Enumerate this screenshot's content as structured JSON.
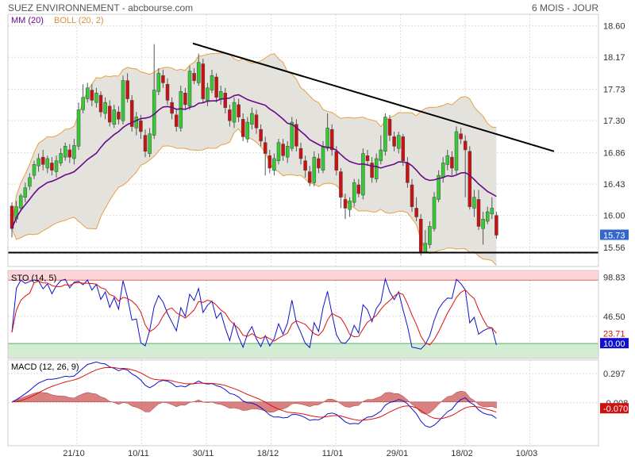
{
  "header": {
    "title": "SUEZ ENVIRONNEMENT - abcbourse.com",
    "period": "6 MOIS - JOUR"
  },
  "legend": {
    "mm": "MM (20)",
    "boll": "BOLL (20, 2)",
    "sto": "STO (14, 5)",
    "macd": "MACD (12, 26, 9)"
  },
  "colors": {
    "up": "#33cc33",
    "down": "#cc1111",
    "mm": "#6a0a8a",
    "boll_line": "#e8a040",
    "boll_fill": "#e4e2dc",
    "stoch_fast": "#1111cc",
    "stoch_slow": "#dd1111",
    "macd": "#1111cc",
    "signal": "#dd1111",
    "hist": "#cc5555",
    "overbought": "#fdd4d8",
    "oversold": "#d4ecd4",
    "last_price": "#3366cc"
  },
  "x_axis_labels": [
    "21/10",
    "10/11",
    "30/11",
    "18/12",
    "11/01",
    "29/01",
    "18/02",
    "10/03"
  ],
  "chart_data": [
    {
      "type": "candlestick",
      "name": "price",
      "yticks": [
        15.56,
        16.0,
        16.43,
        16.86,
        17.3,
        17.73,
        18.17,
        18.6
      ],
      "ylim": [
        15.3,
        18.76
      ],
      "last_price": 15.73,
      "horizontal_support": 15.49,
      "trendline": {
        "from": {
          "date": "08/11",
          "value": 18.36
        },
        "to": {
          "date": "15/03",
          "value": 16.88
        }
      },
      "candles": [
        [
          16.13,
          15.82,
          16.18,
          15.7
        ],
        [
          15.95,
          16.12,
          16.2,
          15.9
        ],
        [
          16.1,
          16.27,
          16.3,
          16.05
        ],
        [
          16.25,
          16.38,
          16.45,
          16.18
        ],
        [
          16.4,
          16.52,
          16.58,
          16.35
        ],
        [
          16.55,
          16.7,
          16.75,
          16.5
        ],
        [
          16.68,
          16.78,
          16.85,
          16.6
        ],
        [
          16.8,
          16.7,
          16.9,
          16.62
        ],
        [
          16.65,
          16.78,
          16.82,
          16.58
        ],
        [
          16.72,
          16.62,
          16.8,
          16.55
        ],
        [
          16.6,
          16.75,
          16.82,
          16.52
        ],
        [
          16.72,
          16.85,
          16.92,
          16.68
        ],
        [
          16.8,
          16.95,
          17.0,
          16.75
        ],
        [
          16.9,
          16.8,
          16.98,
          16.72
        ],
        [
          16.78,
          16.96,
          17.05,
          16.7
        ],
        [
          16.95,
          17.45,
          17.55,
          16.9
        ],
        [
          17.45,
          17.62,
          17.8,
          17.4
        ],
        [
          17.6,
          17.75,
          17.82,
          17.55
        ],
        [
          17.72,
          17.58,
          17.8,
          17.5
        ],
        [
          17.55,
          17.68,
          17.75,
          17.48
        ],
        [
          17.65,
          17.42,
          17.7,
          17.35
        ],
        [
          17.4,
          17.55,
          17.62,
          17.32
        ],
        [
          17.5,
          17.28,
          17.58,
          17.22
        ],
        [
          17.25,
          17.45,
          17.52,
          17.2
        ],
        [
          17.42,
          17.32,
          17.5,
          17.25
        ],
        [
          17.3,
          17.85,
          17.92,
          17.25
        ],
        [
          17.85,
          17.6,
          17.95,
          17.55
        ],
        [
          17.58,
          17.22,
          17.65,
          17.15
        ],
        [
          17.2,
          17.35,
          17.42,
          17.1
        ],
        [
          17.3,
          17.15,
          17.38,
          17.05
        ],
        [
          17.1,
          16.88,
          17.18,
          16.8
        ],
        [
          16.85,
          17.12,
          17.2,
          16.8
        ],
        [
          17.1,
          17.72,
          18.35,
          17.05
        ],
        [
          17.7,
          17.95,
          18.02,
          17.65
        ],
        [
          17.92,
          17.82,
          18.0,
          17.75
        ],
        [
          17.8,
          17.58,
          17.88,
          17.52
        ],
        [
          17.55,
          17.4,
          17.62,
          17.32
        ],
        [
          17.38,
          17.22,
          17.45,
          17.15
        ],
        [
          17.2,
          17.7,
          17.78,
          17.15
        ],
        [
          17.68,
          17.52,
          17.75,
          17.45
        ],
        [
          17.5,
          17.98,
          18.05,
          17.45
        ],
        [
          17.95,
          17.85,
          18.02,
          17.8
        ],
        [
          17.82,
          18.1,
          18.22,
          17.78
        ],
        [
          18.08,
          17.6,
          18.15,
          17.55
        ],
        [
          17.58,
          17.75,
          17.82,
          17.5
        ],
        [
          17.72,
          17.92,
          18.0,
          17.68
        ],
        [
          17.9,
          17.62,
          17.95,
          17.55
        ],
        [
          17.6,
          17.7,
          17.78,
          17.52
        ],
        [
          17.68,
          17.48,
          17.75,
          17.4
        ],
        [
          17.45,
          17.3,
          17.52,
          17.22
        ],
        [
          17.28,
          17.55,
          17.62,
          17.2
        ],
        [
          17.52,
          17.35,
          17.6,
          17.28
        ],
        [
          17.32,
          17.08,
          17.4,
          17.02
        ],
        [
          17.05,
          17.28,
          17.35,
          17.0
        ],
        [
          17.25,
          17.4,
          17.48,
          17.18
        ],
        [
          17.38,
          17.2,
          17.45,
          17.12
        ],
        [
          17.18,
          17.02,
          17.25,
          16.95
        ],
        [
          17.0,
          16.85,
          17.08,
          16.55
        ],
        [
          16.82,
          16.65,
          16.9,
          16.58
        ],
        [
          16.62,
          16.78,
          16.85,
          16.55
        ],
        [
          16.75,
          17.0,
          17.05,
          16.7
        ],
        [
          16.98,
          16.82,
          17.05,
          16.75
        ],
        [
          16.8,
          16.95,
          17.02,
          16.72
        ],
        [
          16.92,
          17.28,
          17.35,
          16.88
        ],
        [
          17.25,
          16.95,
          17.32,
          16.88
        ],
        [
          16.92,
          16.78,
          17.0,
          16.7
        ],
        [
          16.75,
          16.62,
          16.82,
          16.52
        ],
        [
          16.6,
          16.45,
          16.68,
          16.4
        ],
        [
          16.45,
          16.8,
          16.88,
          16.4
        ],
        [
          16.78,
          16.65,
          16.85,
          16.58
        ],
        [
          16.62,
          16.95,
          17.02,
          16.58
        ],
        [
          16.92,
          17.2,
          17.4,
          16.88
        ],
        [
          17.18,
          16.9,
          17.25,
          16.82
        ],
        [
          16.88,
          16.62,
          16.95,
          16.55
        ],
        [
          16.6,
          16.25,
          16.65,
          16.1
        ],
        [
          16.22,
          16.1,
          16.3,
          15.95
        ],
        [
          16.08,
          16.2,
          16.25,
          15.98
        ],
        [
          16.18,
          16.45,
          16.5,
          16.12
        ],
        [
          16.42,
          16.3,
          16.5,
          16.25
        ],
        [
          16.28,
          16.85,
          16.92,
          16.22
        ],
        [
          16.82,
          16.75,
          16.9,
          16.68
        ],
        [
          16.72,
          16.52,
          16.8,
          16.45
        ],
        [
          16.5,
          16.78,
          16.85,
          16.45
        ],
        [
          16.75,
          16.9,
          17.1,
          16.7
        ],
        [
          16.88,
          17.35,
          17.4,
          16.82
        ],
        [
          17.32,
          17.1,
          17.38,
          17.02
        ],
        [
          17.08,
          16.95,
          17.15,
          16.88
        ],
        [
          16.92,
          17.1,
          17.15,
          16.85
        ],
        [
          17.08,
          16.75,
          17.12,
          16.68
        ],
        [
          16.72,
          16.45,
          16.8,
          16.38
        ],
        [
          16.42,
          16.12,
          16.5,
          16.05
        ],
        [
          16.1,
          15.98,
          16.25,
          15.92
        ],
        [
          15.95,
          15.5,
          16.02,
          15.45
        ],
        [
          15.5,
          15.62,
          15.8,
          15.48
        ],
        [
          15.6,
          15.85,
          15.92,
          15.55
        ],
        [
          15.82,
          16.25,
          16.32,
          15.78
        ],
        [
          16.22,
          16.55,
          16.62,
          16.18
        ],
        [
          16.52,
          16.72,
          16.8,
          16.45
        ],
        [
          16.7,
          16.82,
          16.9,
          16.62
        ],
        [
          16.8,
          16.65,
          16.88,
          16.55
        ],
        [
          16.62,
          17.15,
          17.22,
          16.55
        ],
        [
          17.12,
          17.05,
          17.2,
          16.98
        ],
        [
          17.02,
          16.9,
          17.1,
          16.25
        ],
        [
          16.88,
          16.12,
          16.95,
          16.08
        ],
        [
          16.1,
          16.25,
          16.35,
          15.98
        ],
        [
          16.22,
          15.85,
          16.35,
          15.8
        ],
        [
          15.82,
          15.95,
          16.05,
          15.6
        ],
        [
          15.92,
          16.05,
          16.12,
          15.88
        ],
        [
          16.02,
          16.1,
          16.25,
          15.95
        ],
        [
          16.0,
          15.73,
          16.05,
          15.68
        ]
      ]
    },
    {
      "type": "line",
      "name": "MM (20)"
    },
    {
      "type": "area",
      "name": "BOLL (20, 2)"
    },
    {
      "type": "line",
      "name": "STO (14, 5)",
      "yticks": [
        46.5,
        98.83
      ],
      "ylim": [
        -10,
        108
      ],
      "overbought": 95,
      "oversold": 10,
      "last_slow": 23.71,
      "last_fast": 10.0
    },
    {
      "type": "bar+line",
      "name": "MACD (12, 26, 9)",
      "yticks": [
        0.297,
        -0.008
      ],
      "ylim": [
        -0.46,
        0.44
      ],
      "last_signal": -0.008,
      "last_macd": -0.07
    }
  ]
}
